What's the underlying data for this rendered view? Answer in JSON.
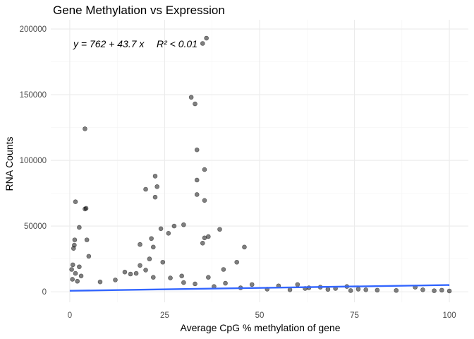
{
  "chart_data": {
    "type": "scatter",
    "title": "Gene Methylation vs Expression",
    "xlabel": "Average CpG % methylation of gene",
    "ylabel": "RNA Counts",
    "xlim": [
      -5,
      105
    ],
    "ylim": [
      -8000,
      207000
    ],
    "x_ticks": [
      0,
      25,
      50,
      75,
      100
    ],
    "y_ticks": [
      0,
      50000,
      100000,
      150000,
      200000
    ],
    "x_tick_labels": [
      "0",
      "25",
      "50",
      "75",
      "100"
    ],
    "y_tick_labels": [
      "0",
      "50000",
      "100000",
      "150000",
      "200000"
    ],
    "grid": true,
    "legend": "none",
    "point_color": "#000000",
    "fit_color": "#3366FF",
    "regression": {
      "intercept": 762,
      "slope": 43.7,
      "x_range": [
        0,
        100
      ],
      "equation": "y = 762 + 43.7 x",
      "r2": "R² < 0.01"
    },
    "points": [
      {
        "x": 36,
        "y": 193000
      },
      {
        "x": 35,
        "y": 189000
      },
      {
        "x": 32,
        "y": 148000
      },
      {
        "x": 33,
        "y": 143000
      },
      {
        "x": 4,
        "y": 124000
      },
      {
        "x": 33.5,
        "y": 108000
      },
      {
        "x": 35.5,
        "y": 93000
      },
      {
        "x": 22.5,
        "y": 88000
      },
      {
        "x": 33.5,
        "y": 85000
      },
      {
        "x": 23,
        "y": 80000
      },
      {
        "x": 20,
        "y": 78000
      },
      {
        "x": 33.5,
        "y": 74000
      },
      {
        "x": 22.5,
        "y": 72000
      },
      {
        "x": 35.5,
        "y": 69500
      },
      {
        "x": 1.5,
        "y": 68500
      },
      {
        "x": 4,
        "y": 63000
      },
      {
        "x": 4.3,
        "y": 63500
      },
      {
        "x": 30,
        "y": 51000
      },
      {
        "x": 27.5,
        "y": 50000
      },
      {
        "x": 2.5,
        "y": 49000
      },
      {
        "x": 24,
        "y": 48000
      },
      {
        "x": 39.5,
        "y": 47500
      },
      {
        "x": 26,
        "y": 44500
      },
      {
        "x": 36.5,
        "y": 42000
      },
      {
        "x": 35.5,
        "y": 41000
      },
      {
        "x": 21.5,
        "y": 40500
      },
      {
        "x": 4.5,
        "y": 39500
      },
      {
        "x": 1.3,
        "y": 39500
      },
      {
        "x": 35,
        "y": 37000
      },
      {
        "x": 18.5,
        "y": 36000
      },
      {
        "x": 1.2,
        "y": 35500
      },
      {
        "x": 1,
        "y": 33000
      },
      {
        "x": 46,
        "y": 34000
      },
      {
        "x": 22,
        "y": 34000
      },
      {
        "x": 5,
        "y": 27000
      },
      {
        "x": 21,
        "y": 25000
      },
      {
        "x": 24.5,
        "y": 22500
      },
      {
        "x": 44,
        "y": 22500
      },
      {
        "x": 40.5,
        "y": 17000
      },
      {
        "x": 20,
        "y": 16500
      },
      {
        "x": 14.5,
        "y": 15000
      },
      {
        "x": 0.8,
        "y": 20500
      },
      {
        "x": 2.5,
        "y": 19000
      },
      {
        "x": 18.5,
        "y": 20000
      },
      {
        "x": 17.5,
        "y": 14000
      },
      {
        "x": 29.5,
        "y": 12000
      },
      {
        "x": 26.5,
        "y": 10500
      },
      {
        "x": 36.5,
        "y": 11000
      },
      {
        "x": 22,
        "y": 11000
      },
      {
        "x": 16,
        "y": 13500
      },
      {
        "x": 0.5,
        "y": 17000
      },
      {
        "x": 1.5,
        "y": 14000
      },
      {
        "x": 3,
        "y": 12000
      },
      {
        "x": 0.7,
        "y": 9500
      },
      {
        "x": 2,
        "y": 8000
      },
      {
        "x": 12,
        "y": 9000
      },
      {
        "x": 8,
        "y": 7500
      },
      {
        "x": 30,
        "y": 7000
      },
      {
        "x": 33,
        "y": 6000
      },
      {
        "x": 41,
        "y": 6500
      },
      {
        "x": 48,
        "y": 5500
      },
      {
        "x": 55,
        "y": 4500
      },
      {
        "x": 60,
        "y": 5500
      },
      {
        "x": 63,
        "y": 3000
      },
      {
        "x": 66,
        "y": 3500
      },
      {
        "x": 70,
        "y": 2500
      },
      {
        "x": 73,
        "y": 4000
      },
      {
        "x": 76,
        "y": 2000
      },
      {
        "x": 78,
        "y": 1500
      },
      {
        "x": 81,
        "y": 1200
      },
      {
        "x": 86,
        "y": 1000
      },
      {
        "x": 91,
        "y": 3500
      },
      {
        "x": 93,
        "y": 1500
      },
      {
        "x": 96,
        "y": 800
      },
      {
        "x": 98,
        "y": 1200
      },
      {
        "x": 100,
        "y": 600
      },
      {
        "x": 52,
        "y": 2000
      },
      {
        "x": 58,
        "y": 1500
      },
      {
        "x": 62,
        "y": 2500
      },
      {
        "x": 68,
        "y": 1800
      },
      {
        "x": 74,
        "y": 900
      },
      {
        "x": 45,
        "y": 3000
      },
      {
        "x": 38,
        "y": 4000
      }
    ]
  }
}
